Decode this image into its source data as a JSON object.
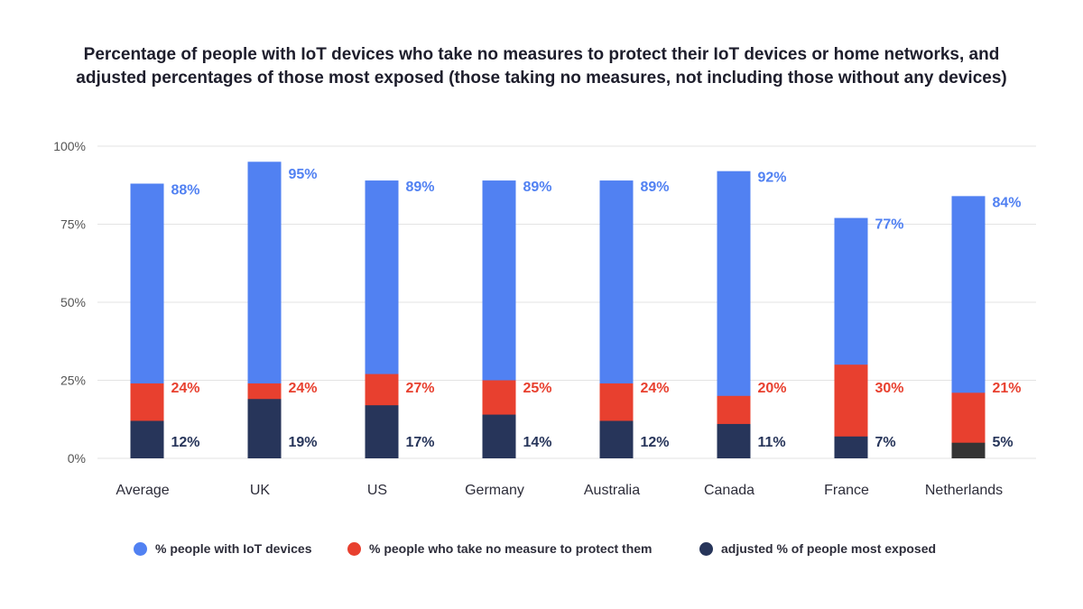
{
  "title": {
    "line1": "Percentage of people with IoT devices who take no measures to protect their IoT devices or home networks, and",
    "line2": "adjusted percentages of those most exposed (those taking no measures, not including those without any devices)"
  },
  "colors": {
    "blue": "#5181f2",
    "red": "#e8402f",
    "navy": "#27355a",
    "gray_bar": "#343434",
    "grid": "#e3e3e3"
  },
  "legend": [
    {
      "label": "% people with IoT  devices",
      "color": "#5181f2"
    },
    {
      "label": "% people who take no measure to protect them",
      "color": "#e8402f"
    },
    {
      "label": "adjusted % of people most exposed",
      "color": "#27355a"
    }
  ],
  "chart_data": {
    "type": "bar",
    "categories": [
      "Average",
      "UK",
      "US",
      "Germany",
      "Australia",
      "Canada",
      "France",
      "Netherlands"
    ],
    "series": [
      {
        "name": "% people with IoT  devices",
        "values": [
          88,
          95,
          89,
          89,
          89,
          92,
          77,
          84
        ],
        "labels": [
          "88%",
          "95%",
          "89%",
          "89%",
          "89%",
          "92%",
          "77%",
          "84%"
        ]
      },
      {
        "name": "% people who take no measure to protect them",
        "values": [
          24,
          24,
          27,
          25,
          24,
          20,
          30,
          21
        ],
        "labels": [
          "24%",
          "24%",
          "27%",
          "25%",
          "24%",
          "20%",
          "30%",
          "21%"
        ]
      },
      {
        "name": "adjusted % of people most exposed",
        "values": [
          12,
          19,
          17,
          14,
          12,
          11,
          7,
          5
        ],
        "labels": [
          "12%",
          "19%",
          "17%",
          "14%",
          "12%",
          "11%",
          "7%",
          "5%"
        ]
      }
    ],
    "yticks": [
      "0%",
      "25%",
      "50%",
      "75%",
      "100%"
    ],
    "ylim": [
      0,
      100
    ],
    "grid": true,
    "legend_position": "bottom",
    "overlay": true
  }
}
